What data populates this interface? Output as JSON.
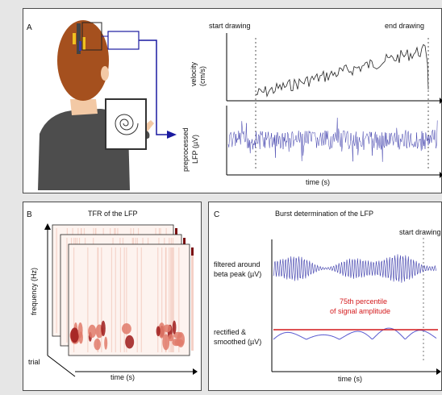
{
  "panel_a": {
    "letter": "A",
    "start_label": "start drawing",
    "end_label": "end drawing",
    "velocity_label_1": "velocity",
    "velocity_label_2": "(cm/s)",
    "lfp_label_1": "preprocessed",
    "lfp_label_2": "LFP (µV)",
    "time_label": "time (s)"
  },
  "panel_b": {
    "letter": "B",
    "title": "TFR of the LFP",
    "y_label": "frequency (Hz)",
    "trial_label": "trial",
    "time_label": "time (s)"
  },
  "panel_c": {
    "letter": "C",
    "title": "Burst determination of the LFP",
    "start_label": "start drawing",
    "filtered_label_1": "filtered around",
    "filtered_label_2": "beta peak (µV)",
    "percentile_label_1": "75th percentile",
    "percentile_label_2": "of signal amplitude",
    "rectified_label_1": "rectified &",
    "rectified_label_2": "smoothed (µV)",
    "time_label": "time (s)"
  },
  "colors": {
    "signal_blue": "#3a3aaa",
    "threshold_red": "#d4191c",
    "hair": "#a5501e",
    "shirt": "#4d4d4d",
    "skin": "#f3c9a5"
  },
  "icons": [
    "person-drawing-illustration",
    "spiral-tablet-icon",
    "electrode-icon"
  ]
}
